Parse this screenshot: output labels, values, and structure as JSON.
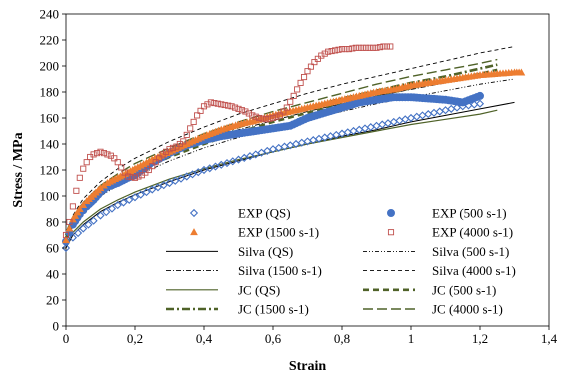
{
  "chart_data": {
    "type": "scatter",
    "xlabel": "Strain",
    "ylabel": "Stress / MPa",
    "xlim": [
      0,
      1.4
    ],
    "ylim": [
      0,
      240
    ],
    "x_ticks": [
      "0",
      "0,2",
      "0,4",
      "0,6",
      "0,8",
      "1",
      "1,2",
      "1,4"
    ],
    "y_ticks": [
      "0",
      "20",
      "40",
      "60",
      "80",
      "100",
      "120",
      "140",
      "160",
      "180",
      "200",
      "220",
      "240"
    ],
    "grid": false,
    "legend_position": "bottom-right (inside plot)",
    "series": [
      {
        "name": "EXP (QS)",
        "style": "diamond-markers",
        "color": "#4472c4",
        "x": [
          0.0,
          0.02,
          0.05,
          0.08,
          0.1,
          0.15,
          0.2,
          0.25,
          0.3,
          0.35,
          0.4,
          0.45,
          0.5,
          0.55,
          0.6,
          0.65,
          0.7,
          0.75,
          0.8,
          0.85,
          0.9,
          0.95,
          1.0,
          1.05,
          1.1,
          1.15,
          1.2
        ],
        "y": [
          60,
          68,
          75,
          81,
          85,
          93,
          99,
          105,
          110,
          115,
          120,
          124,
          128,
          132,
          136,
          139,
          142,
          145,
          148,
          151,
          154,
          157,
          160,
          163,
          166,
          169,
          171
        ]
      },
      {
        "name": "EXP (500 s-1)",
        "style": "circle-markers",
        "color": "#4472c4",
        "x": [
          0.0,
          0.01,
          0.02,
          0.04,
          0.06,
          0.08,
          0.1,
          0.12,
          0.15,
          0.18,
          0.2,
          0.22,
          0.25,
          0.28,
          0.3,
          0.35,
          0.4,
          0.45,
          0.5,
          0.55,
          0.6,
          0.65,
          0.7,
          0.75,
          0.8,
          0.85,
          0.9,
          0.95,
          1.0,
          1.05,
          1.1,
          1.15,
          1.2
        ],
        "y": [
          65,
          72,
          78,
          86,
          92,
          97,
          103,
          107,
          110,
          114,
          116,
          120,
          126,
          130,
          133,
          139,
          143,
          146,
          148,
          150,
          152,
          154,
          160,
          164,
          168,
          172,
          174,
          176,
          176,
          175,
          174,
          172,
          177
        ]
      },
      {
        "name": "EXP (1500 s-1)",
        "style": "triangle-markers",
        "color": "#ed7d31",
        "x": [
          0.0,
          0.01,
          0.02,
          0.04,
          0.06,
          0.08,
          0.1,
          0.12,
          0.15,
          0.18,
          0.2,
          0.25,
          0.3,
          0.35,
          0.4,
          0.45,
          0.5,
          0.55,
          0.6,
          0.65,
          0.7,
          0.75,
          0.8,
          0.85,
          0.9,
          0.95,
          1.0,
          1.05,
          1.1,
          1.15,
          1.2,
          1.25,
          1.3,
          1.32
        ],
        "y": [
          66,
          75,
          82,
          90,
          96,
          101,
          106,
          110,
          114,
          118,
          121,
          128,
          134,
          140,
          146,
          151,
          155,
          158,
          162,
          165,
          168,
          171,
          174,
          177,
          180,
          182,
          185,
          187,
          189,
          191,
          193,
          194,
          195,
          195
        ]
      },
      {
        "name": "EXP (4000 s-1)",
        "style": "square-markers",
        "color": "#c0504d",
        "x": [
          0.0,
          0.01,
          0.02,
          0.03,
          0.04,
          0.05,
          0.06,
          0.07,
          0.08,
          0.09,
          0.1,
          0.11,
          0.12,
          0.13,
          0.14,
          0.15,
          0.16,
          0.17,
          0.18,
          0.2,
          0.22,
          0.24,
          0.26,
          0.28,
          0.3,
          0.32,
          0.34,
          0.36,
          0.38,
          0.4,
          0.42,
          0.44,
          0.46,
          0.48,
          0.5,
          0.52,
          0.54,
          0.56,
          0.58,
          0.6,
          0.62,
          0.64,
          0.66,
          0.68,
          0.7,
          0.72,
          0.74,
          0.76,
          0.78,
          0.8,
          0.82,
          0.84,
          0.86,
          0.88,
          0.9,
          0.92,
          0.94
        ],
        "y": [
          70,
          80,
          92,
          104,
          114,
          121,
          126,
          130,
          132,
          133,
          134,
          133,
          132,
          131,
          129,
          126,
          122,
          118,
          115,
          114,
          116,
          120,
          126,
          132,
          136,
          138,
          142,
          152,
          162,
          169,
          172,
          171,
          170,
          169,
          167,
          165,
          162,
          160,
          159,
          160,
          162,
          168,
          177,
          187,
          196,
          203,
          208,
          211,
          212,
          213,
          213,
          214,
          214,
          214,
          214,
          215,
          215
        ]
      },
      {
        "name": "Silva (QS)",
        "style": "solid-thin",
        "color": "#000000",
        "x": [
          0.0,
          0.02,
          0.05,
          0.1,
          0.15,
          0.2,
          0.3,
          0.4,
          0.5,
          0.6,
          0.7,
          0.8,
          0.9,
          1.0,
          1.1,
          1.2,
          1.3
        ],
        "y": [
          60,
          70,
          78,
          88,
          95,
          101,
          111,
          120,
          127,
          134,
          140,
          146,
          151,
          157,
          162,
          167,
          172
        ]
      },
      {
        "name": "Silva (500 s-1)",
        "style": "dash-dot-dot-thin",
        "color": "#000000",
        "x": [
          0.0,
          0.02,
          0.05,
          0.1,
          0.15,
          0.2,
          0.3,
          0.4,
          0.5,
          0.6,
          0.7,
          0.8,
          0.9,
          1.0,
          1.1,
          1.2,
          1.3
        ],
        "y": [
          64,
          77,
          88,
          100,
          108,
          115,
          127,
          137,
          145,
          152,
          159,
          165,
          171,
          176,
          181,
          186,
          190
        ]
      },
      {
        "name": "Silva (1500 s-1)",
        "style": "dash-dot-thin",
        "color": "#000000",
        "x": [
          0.0,
          0.02,
          0.05,
          0.1,
          0.15,
          0.2,
          0.3,
          0.4,
          0.5,
          0.6,
          0.7,
          0.8,
          0.9,
          1.0,
          1.1,
          1.2,
          1.3
        ],
        "y": [
          66,
          80,
          92,
          104,
          113,
          120,
          132,
          142,
          151,
          158,
          165,
          171,
          177,
          182,
          187,
          192,
          196
        ]
      },
      {
        "name": "Silva (4000 s-1)",
        "style": "dashed-thin",
        "color": "#000000",
        "x": [
          0.0,
          0.02,
          0.05,
          0.1,
          0.15,
          0.2,
          0.3,
          0.4,
          0.5,
          0.6,
          0.7,
          0.8,
          0.9,
          1.0,
          1.1,
          1.2,
          1.3
        ],
        "y": [
          70,
          85,
          98,
          111,
          121,
          129,
          142,
          153,
          163,
          171,
          179,
          186,
          192,
          198,
          204,
          210,
          215
        ]
      },
      {
        "name": "JC (QS)",
        "style": "solid-olive",
        "color": "#4f6228",
        "x": [
          0.0,
          0.02,
          0.05,
          0.1,
          0.15,
          0.2,
          0.3,
          0.4,
          0.5,
          0.6,
          0.7,
          0.8,
          0.9,
          1.0,
          1.1,
          1.2,
          1.25
        ],
        "y": [
          62,
          72,
          80,
          90,
          97,
          103,
          113,
          121,
          128,
          134,
          140,
          145,
          150,
          155,
          159,
          163,
          166
        ]
      },
      {
        "name": "JC (500 s-1)",
        "style": "dashed-olive-thick",
        "color": "#4f6228",
        "x": [
          0.0,
          0.02,
          0.05,
          0.1,
          0.15,
          0.2,
          0.3,
          0.4,
          0.5,
          0.6,
          0.7,
          0.8,
          0.9,
          1.0,
          1.1,
          1.2,
          1.25
        ],
        "y": [
          68,
          80,
          90,
          102,
          111,
          118,
          130,
          140,
          149,
          157,
          164,
          171,
          177,
          183,
          189,
          194,
          197
        ]
      },
      {
        "name": "JC (1500 s-1)",
        "style": "dash-dot-olive-thick",
        "color": "#4f6228",
        "x": [
          0.0,
          0.02,
          0.05,
          0.1,
          0.15,
          0.2,
          0.3,
          0.4,
          0.5,
          0.6,
          0.7,
          0.8,
          0.9,
          1.0,
          1.1,
          1.2,
          1.25
        ],
        "y": [
          70,
          82,
          93,
          105,
          114,
          121,
          134,
          144,
          153,
          161,
          168,
          175,
          181,
          187,
          192,
          198,
          201
        ]
      },
      {
        "name": "JC (4000 s-1)",
        "style": "long-dash-olive",
        "color": "#4f6228",
        "x": [
          0.0,
          0.02,
          0.05,
          0.1,
          0.15,
          0.2,
          0.3,
          0.4,
          0.5,
          0.6,
          0.7,
          0.8,
          0.9,
          1.0,
          1.1,
          1.2,
          1.25
        ],
        "y": [
          72,
          84,
          95,
          108,
          117,
          125,
          137,
          148,
          157,
          165,
          172,
          179,
          186,
          192,
          197,
          202,
          205
        ]
      }
    ]
  }
}
